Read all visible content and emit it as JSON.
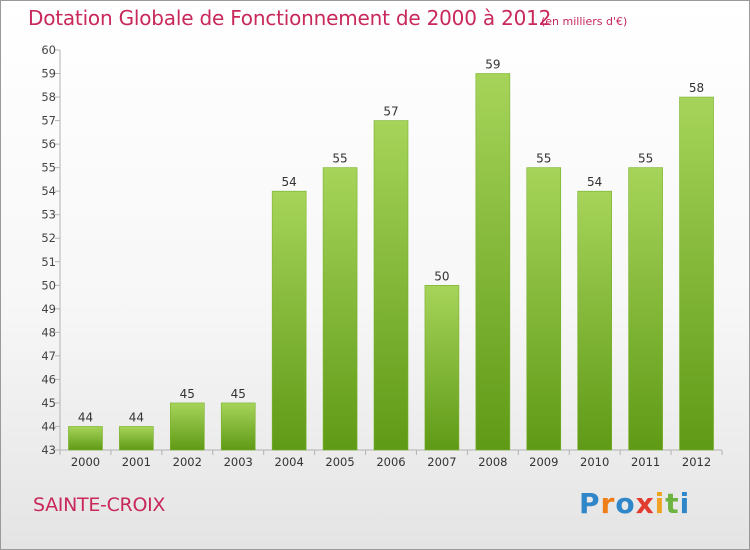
{
  "chart_data": {
    "type": "bar",
    "title": "Dotation Globale de Fonctionnement de 2000 à 2012",
    "subtitle": "(en milliers d'€)",
    "categories": [
      "2000",
      "2001",
      "2002",
      "2003",
      "2004",
      "2005",
      "2006",
      "2007",
      "2008",
      "2009",
      "2010",
      "2011",
      "2012"
    ],
    "values": [
      44,
      44,
      45,
      45,
      54,
      55,
      57,
      50,
      59,
      55,
      54,
      55,
      58
    ],
    "xlabel": "",
    "ylabel": "",
    "ylim": [
      43,
      60
    ],
    "yticks": [
      43,
      44,
      45,
      46,
      47,
      48,
      49,
      50,
      51,
      52,
      53,
      54,
      55,
      56,
      57,
      58,
      59,
      60
    ],
    "grid": false,
    "legend": "none",
    "bar_color_light": "#a6d45a",
    "bar_color_dark": "#5f9a16"
  },
  "commune": "SAINTE-CROIX",
  "logo": {
    "p": "P",
    "r": "r",
    "o": "o",
    "x": "x",
    "i1": "i",
    "t": "t",
    "i2": "i"
  }
}
